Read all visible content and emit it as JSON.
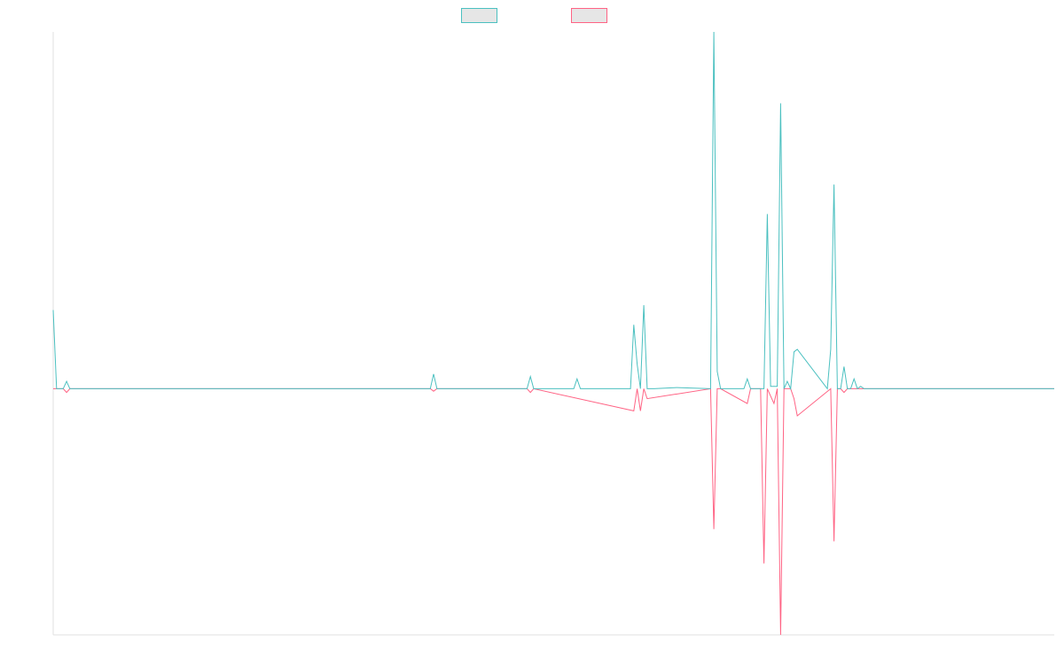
{
  "chart_data": {
    "type": "line",
    "title": "",
    "xlabel": "",
    "ylabel": "",
    "legend_position": "top-center",
    "grid": false,
    "axes_visible": false,
    "ylim": [
      -100,
      145
    ],
    "xlim": [
      0,
      300
    ],
    "series": [
      {
        "label": "",
        "color": "#4bc0c0",
        "fill": "#e6e6e6",
        "x": [
          0,
          1,
          2,
          3,
          4,
          5,
          113,
          114,
          115,
          142,
          143,
          144,
          156,
          157,
          158,
          160,
          173,
          174,
          175,
          176,
          177,
          178,
          179,
          180,
          187,
          197,
          198,
          199,
          200,
          207,
          208,
          209,
          213,
          214,
          215,
          216,
          217,
          218,
          219,
          220,
          221,
          222,
          223,
          232,
          233,
          234,
          235,
          236,
          237,
          238,
          239,
          240,
          241,
          242,
          243,
          244,
          245,
          246,
          247,
          248,
          250,
          300
        ],
        "y": [
          32,
          0,
          0,
          0,
          3,
          0,
          0,
          6,
          0,
          0,
          5,
          0,
          0,
          4,
          0,
          0,
          0,
          26,
          10,
          0,
          34,
          0,
          0,
          0,
          0.5,
          0,
          145,
          7,
          0,
          0,
          4,
          0,
          0,
          71,
          1,
          1,
          1,
          116,
          0,
          3,
          0,
          15,
          16,
          0,
          16,
          83,
          0,
          0,
          9,
          0,
          0,
          4,
          0,
          1,
          0,
          0,
          0,
          0,
          0,
          0,
          0,
          0
        ]
      },
      {
        "label": "",
        "color": "#ff6384",
        "fill": "#e6e6e6",
        "x": [
          0,
          2,
          3,
          4,
          5,
          113,
          114,
          115,
          142,
          143,
          144,
          174,
          175,
          176,
          177,
          178,
          197,
          198,
          199,
          200,
          208,
          209,
          212,
          213,
          214,
          216,
          217,
          218,
          219,
          220,
          221,
          222,
          223,
          233,
          234,
          235,
          236,
          237,
          238,
          240,
          241,
          244,
          245,
          300
        ],
        "y": [
          0,
          0,
          0,
          -1.5,
          0,
          0,
          -1,
          0,
          0,
          -1.5,
          0,
          -9,
          0,
          -9,
          0,
          -4,
          0,
          -57,
          0,
          0,
          -6,
          0,
          0,
          -71,
          0,
          -6,
          0,
          -100,
          0,
          0,
          0,
          -4,
          -11,
          0,
          -62,
          0,
          0,
          -1.5,
          0,
          0,
          0,
          0,
          0,
          0
        ]
      }
    ]
  },
  "colors": {
    "series_1": "#4bc0c0",
    "series_2": "#ff6384",
    "legend_fill": "#e6e6e6",
    "axis": "#e0e0e0"
  }
}
